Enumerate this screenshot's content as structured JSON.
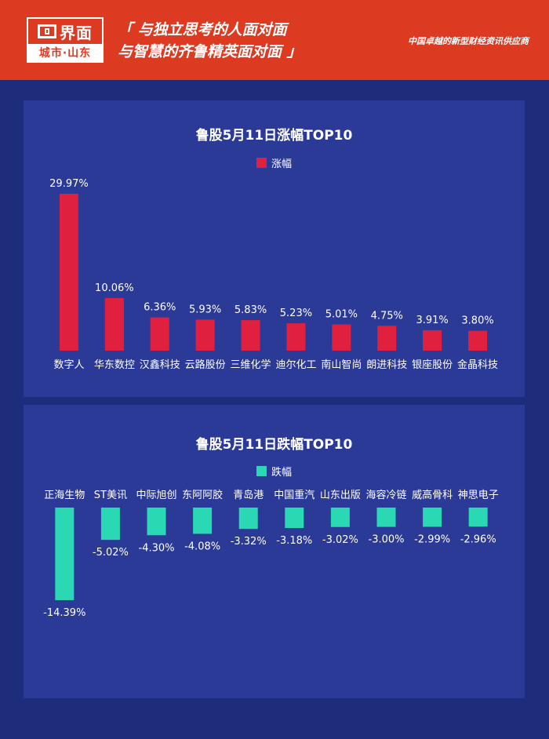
{
  "header": {
    "logo_name": "界面",
    "logo_sub": "城市·山东",
    "slogan_line1": "「 与独立思考的人面对面",
    "slogan_line2": "与智慧的齐鲁精英面对面 」",
    "tagline": "中国卓越的新型财经资讯供应商",
    "background": "#dc3b22"
  },
  "chart_data": [
    {
      "type": "bar",
      "title": "鲁股5月11日涨幅TOP10",
      "legend": "涨幅",
      "color": "#e0203f",
      "categories": [
        "数字人",
        "华东数控",
        "汉鑫科技",
        "云路股份",
        "三维化学",
        "迪尔化工",
        "南山智尚",
        "朗进科技",
        "银座股份",
        "金晶科技"
      ],
      "values": [
        29.97,
        10.06,
        6.36,
        5.93,
        5.83,
        5.23,
        5.01,
        4.75,
        3.91,
        3.8
      ],
      "labels": [
        "29.97%",
        "10.06%",
        "6.36%",
        "5.93%",
        "5.83%",
        "5.23%",
        "5.01%",
        "4.75%",
        "3.91%",
        "3.80%"
      ],
      "unit": "%",
      "legend_position": "top-center"
    },
    {
      "type": "bar",
      "title": "鲁股5月11日跌幅TOP10",
      "legend": "跌幅",
      "color": "#2ad8b4",
      "categories": [
        "正海生物",
        "ST美讯",
        "中际旭创",
        "东阿阿胶",
        "青岛港",
        "中国重汽",
        "山东出版",
        "海容冷链",
        "威高骨科",
        "神思电子"
      ],
      "values": [
        -14.39,
        -5.02,
        -4.3,
        -4.08,
        -3.32,
        -3.18,
        -3.02,
        -3.0,
        -2.99,
        -2.96
      ],
      "labels": [
        "-14.39%",
        "-5.02%",
        "-4.30%",
        "-4.08%",
        "-3.32%",
        "-3.18%",
        "-3.02%",
        "-3.00%",
        "-2.99%",
        "-2.96%"
      ],
      "unit": "%",
      "legend_position": "top-center"
    }
  ]
}
